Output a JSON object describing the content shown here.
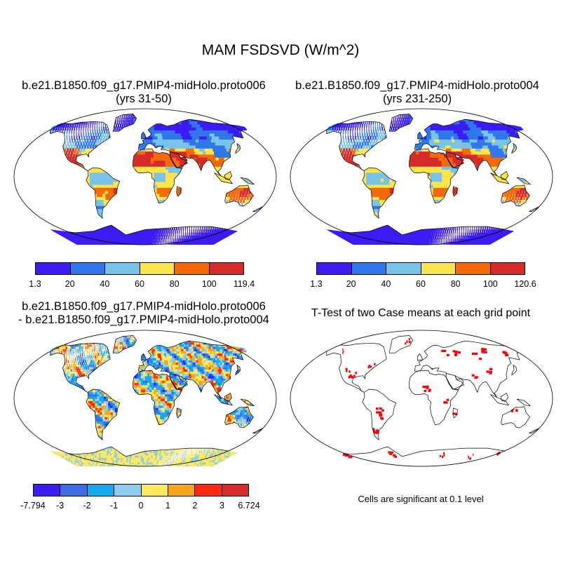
{
  "title": "MAM FSDSVD (W/m^2)",
  "panels": [
    {
      "id": "case1",
      "title_line1": "b.e21.B1850.f09_g17.PMIP4-midHolo.proto006",
      "title_line2": "(yrs 31-50)",
      "colorbar": {
        "labels": [
          "1.3",
          "20",
          "40",
          "60",
          "80",
          "100",
          "119.4"
        ],
        "colors": [
          "#3b1cf2",
          "#2f77ea",
          "#79c3ea",
          "#fce54a",
          "#f56a07",
          "#d62b2b"
        ]
      }
    },
    {
      "id": "case2",
      "title_line1": "b.e21.B1850.f09_g17.PMIP4-midHolo.proto004",
      "title_line2": "(yrs 231-250)",
      "colorbar": {
        "labels": [
          "1.3",
          "20",
          "40",
          "60",
          "80",
          "100",
          "120.6"
        ],
        "colors": [
          "#3b1cf2",
          "#2f77ea",
          "#79c3ea",
          "#fce54a",
          "#f56a07",
          "#d62b2b"
        ]
      }
    },
    {
      "id": "difference",
      "title_line1": "b.e21.B1850.f09_g17.PMIP4-midHolo.proto006",
      "title_line2": "- b.e21.B1850.f09_g17.PMIP4-midHolo.proto004",
      "colorbar": {
        "labels": [
          "-7.794",
          "-3",
          "-2",
          "-1",
          "0",
          "1",
          "2",
          "3",
          "6.724"
        ],
        "colors": [
          "#3b1cf2",
          "#3b6ee6",
          "#14aaf0",
          "#8fcdee",
          "#fde95a",
          "#f7a51a",
          "#ff2a10",
          "#d62b2b"
        ]
      }
    },
    {
      "id": "ttest",
      "title_line1": "T-Test of two Case means at each grid point",
      "note": "Cells are significant at 0.1 level",
      "highlight_color": "#ff0000"
    }
  ]
}
